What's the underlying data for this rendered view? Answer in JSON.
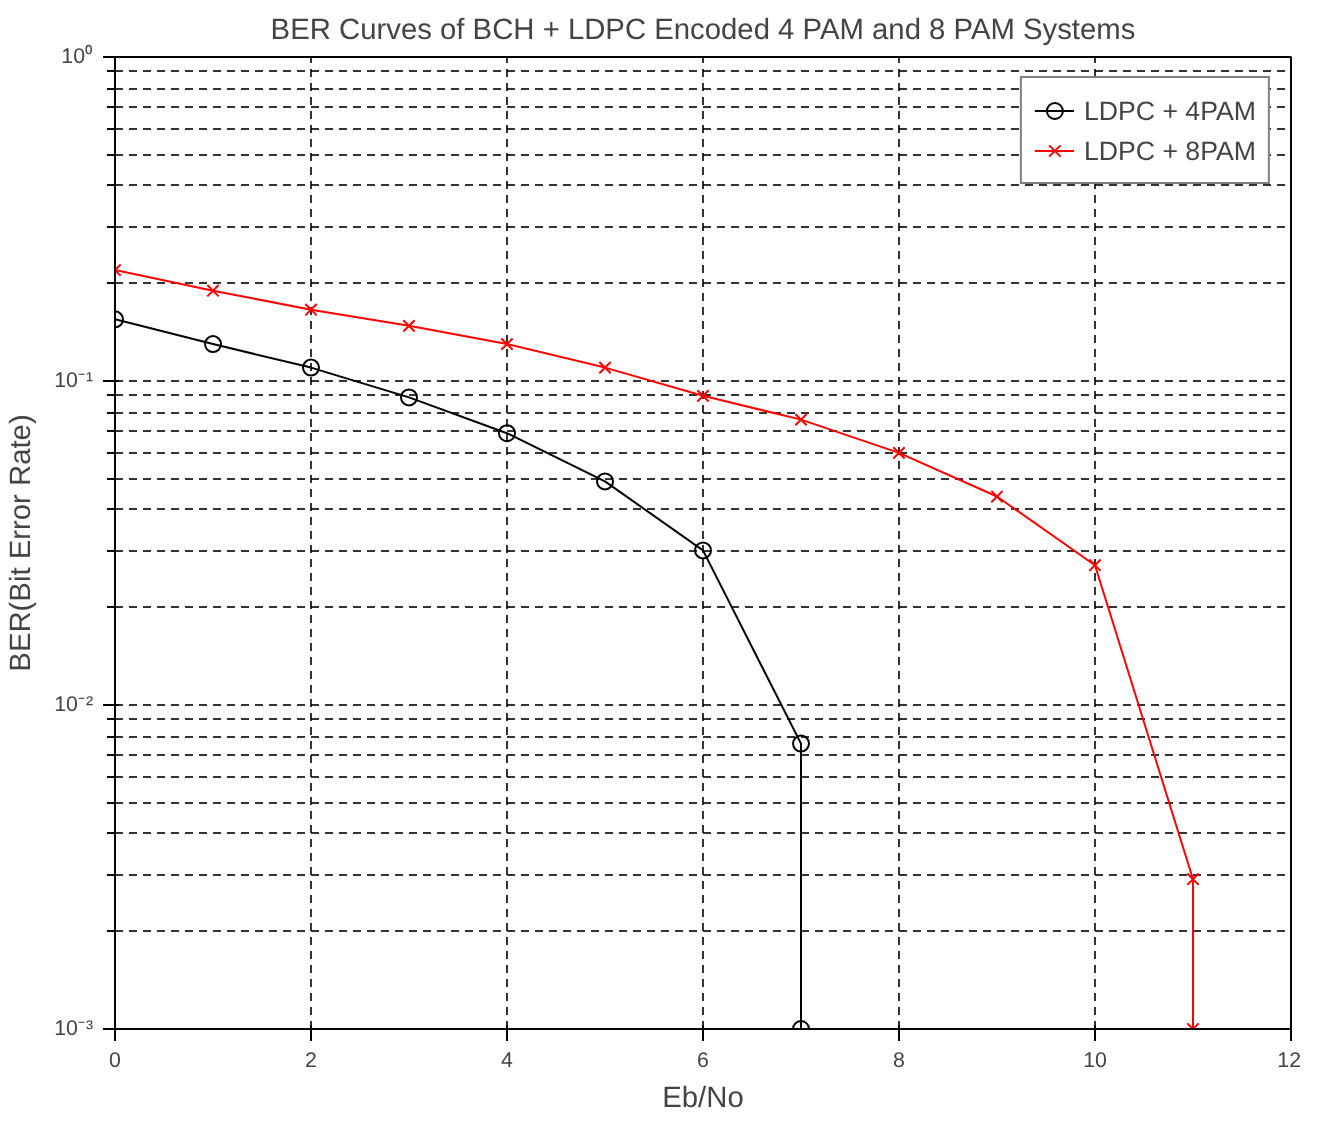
{
  "chart_data": {
    "type": "line",
    "title": "BER Curves of BCH + LDPC Encoded 4 PAM and 8 PAM Systems",
    "xlabel": "Eb/No",
    "ylabel": "BER(Bit Error Rate)",
    "log": "y",
    "grid": true,
    "legend": "top right",
    "line_style": "solid",
    "xlim": [
      0,
      12
    ],
    "xticks": [
      0,
      2,
      4,
      6,
      8,
      10,
      12
    ],
    "ylim": [
      0.001,
      1
    ],
    "yticks": [
      {
        "value": 0.001,
        "label": "10⁻³"
      },
      {
        "value": 0.01,
        "label": "10⁻²"
      },
      {
        "value": 0.1,
        "label": "10⁻¹"
      },
      {
        "value": 1,
        "label": "10⁰"
      }
    ],
    "series": [
      {
        "name": "LDPC + 4PAM",
        "color": "#000000",
        "marker": "circle",
        "x": [
          0,
          1,
          2,
          3,
          4,
          5,
          6,
          7,
          7
        ],
        "values": [
          0.155,
          0.13,
          0.11,
          0.089,
          0.069,
          0.049,
          0.03,
          0.0076,
          0.001
        ]
      },
      {
        "name": "LDPC + 8PAM",
        "color": "#ff0000",
        "marker": "cross",
        "x": [
          0,
          1,
          2,
          3,
          4,
          5,
          6,
          7,
          8,
          9,
          10,
          11,
          11
        ],
        "values": [
          0.22,
          0.19,
          0.166,
          0.148,
          0.13,
          0.11,
          0.09,
          0.076,
          0.06,
          0.044,
          0.027,
          0.0029,
          0.001
        ]
      }
    ]
  }
}
